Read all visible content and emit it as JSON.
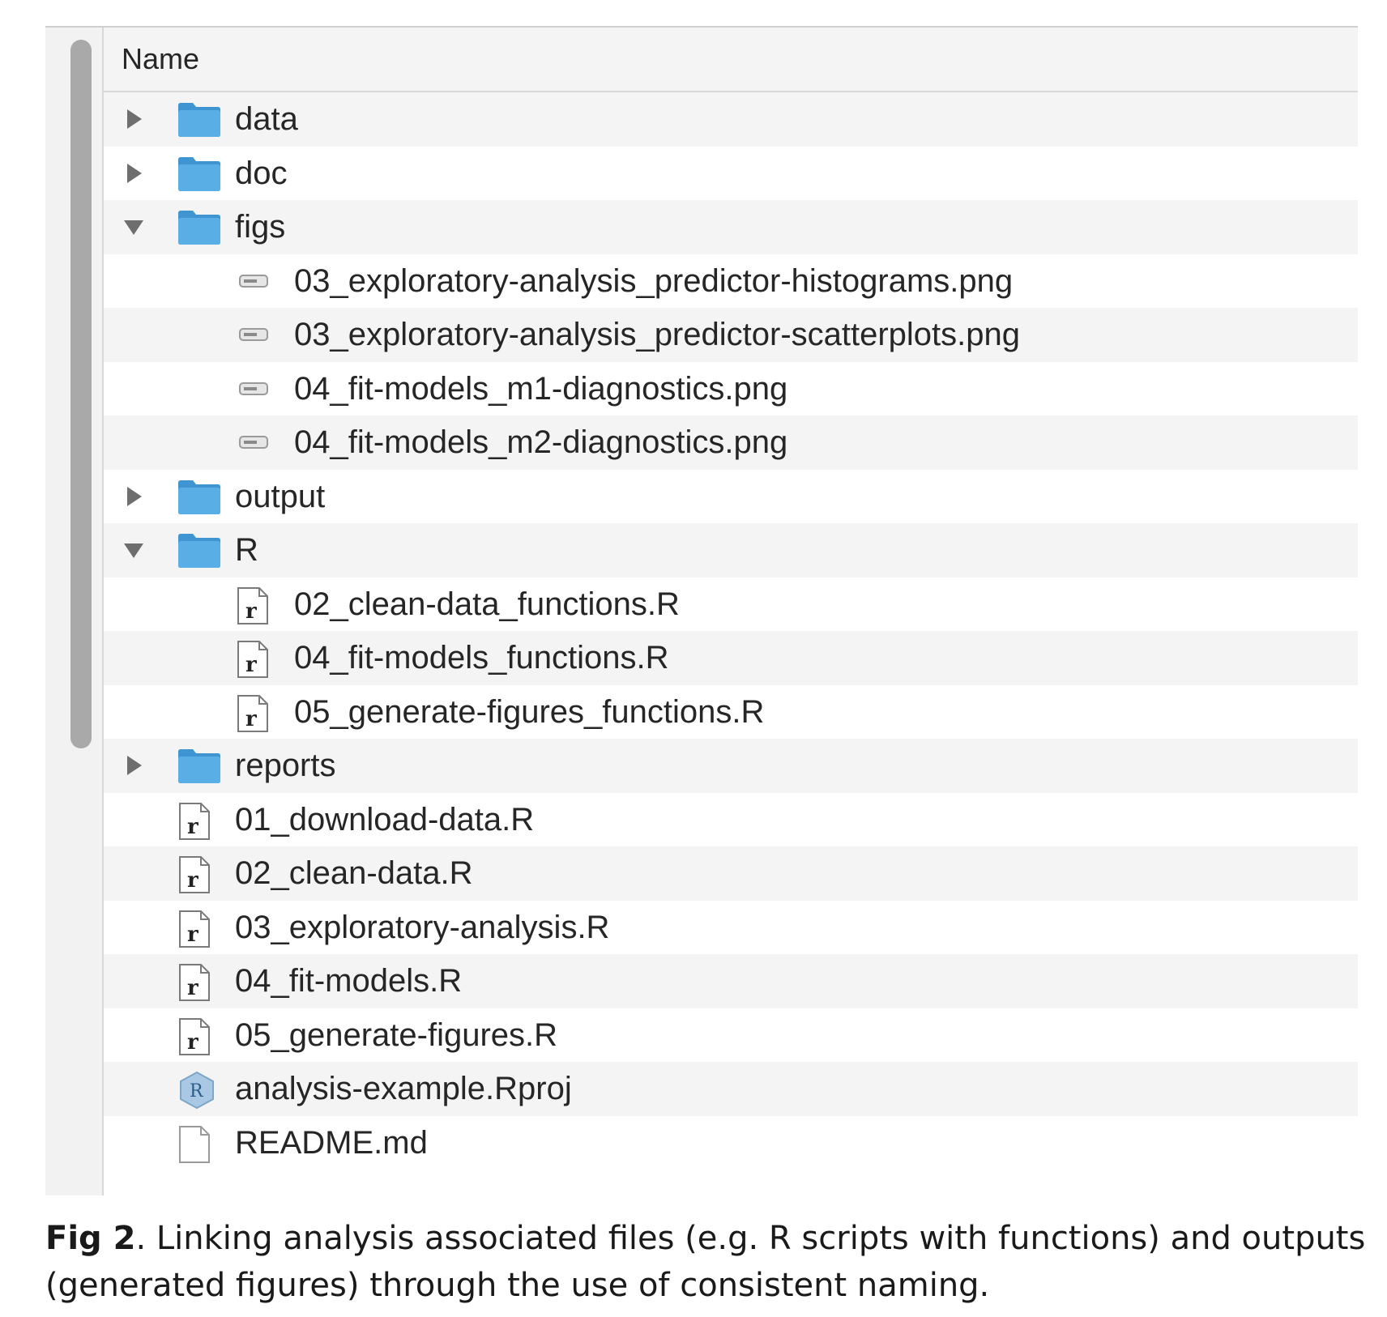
{
  "header": {
    "name_column": "Name"
  },
  "rows": [
    {
      "label": "data",
      "type": "folder",
      "level": 0,
      "toggle": "collapsed"
    },
    {
      "label": "doc",
      "type": "folder",
      "level": 0,
      "toggle": "collapsed"
    },
    {
      "label": "figs",
      "type": "folder",
      "level": 0,
      "toggle": "expanded"
    },
    {
      "label": "03_exploratory-analysis_predictor-histograms.png",
      "type": "image",
      "level": 1
    },
    {
      "label": "03_exploratory-analysis_predictor-scatterplots.png",
      "type": "image",
      "level": 1
    },
    {
      "label": "04_fit-models_m1-diagnostics.png",
      "type": "image",
      "level": 1
    },
    {
      "label": "04_fit-models_m2-diagnostics.png",
      "type": "image",
      "level": 1
    },
    {
      "label": "output",
      "type": "folder",
      "level": 0,
      "toggle": "collapsed"
    },
    {
      "label": "R",
      "type": "folder",
      "level": 0,
      "toggle": "expanded"
    },
    {
      "label": "02_clean-data_functions.R",
      "type": "rscript",
      "level": 1
    },
    {
      "label": "04_fit-models_functions.R",
      "type": "rscript",
      "level": 1
    },
    {
      "label": "05_generate-figures_functions.R",
      "type": "rscript",
      "level": 1
    },
    {
      "label": "reports",
      "type": "folder",
      "level": 0,
      "toggle": "collapsed"
    },
    {
      "label": "01_download-data.R",
      "type": "rscript",
      "level": 0
    },
    {
      "label": "02_clean-data.R",
      "type": "rscript",
      "level": 0
    },
    {
      "label": "03_exploratory-analysis.R",
      "type": "rscript",
      "level": 0
    },
    {
      "label": "04_fit-models.R",
      "type": "rscript",
      "level": 0
    },
    {
      "label": "05_generate-figures.R",
      "type": "rscript",
      "level": 0
    },
    {
      "label": "analysis-example.Rproj",
      "type": "rproj",
      "level": 0
    },
    {
      "label": "README.md",
      "type": "document",
      "level": 0
    }
  ],
  "caption": {
    "label": "Fig 2",
    "text": ". Linking analysis associated files (e.g. R scripts with functions) and outputs (generated figures) through the use of consistent naming."
  },
  "colors": {
    "folder": "#5aaee6",
    "folder_dark": "#3f95d2",
    "row_alt": "#f4f4f4"
  }
}
